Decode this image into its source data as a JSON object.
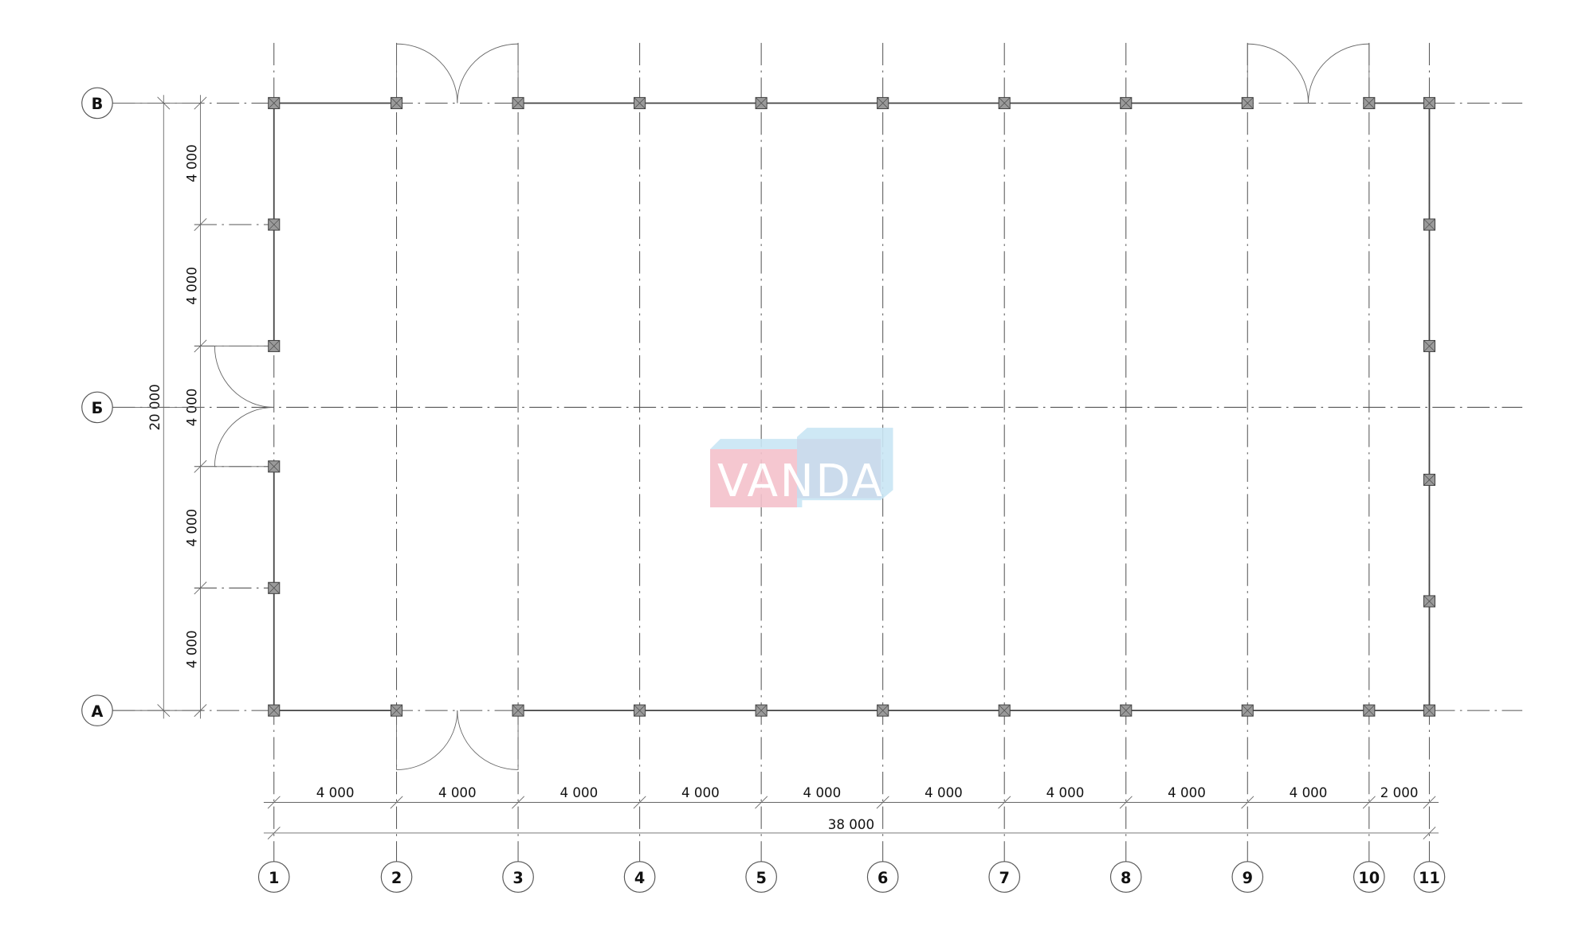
{
  "drawing": {
    "column_axes": [
      "1",
      "2",
      "3",
      "4",
      "5",
      "6",
      "7",
      "8",
      "9",
      "10",
      "11"
    ],
    "row_axes": [
      "А",
      "Б",
      "В"
    ],
    "horizontal_dimensions": [
      "4 000",
      "4 000",
      "4 000",
      "4 000",
      "4 000",
      "4 000",
      "4 000",
      "4 000",
      "4 000",
      "2 000"
    ],
    "horizontal_total": "38 000",
    "vertical_dimensions": [
      "4 000",
      "4 000",
      "4 000",
      "4 000",
      "4 000"
    ],
    "vertical_total": "20 000"
  },
  "watermark": {
    "text": "VANDA",
    "colors": {
      "pink": "#f4c2cc",
      "blue": "#c9e6f5"
    }
  },
  "colors": {
    "line": "#555555",
    "column_fill": "#9a9a9a"
  }
}
